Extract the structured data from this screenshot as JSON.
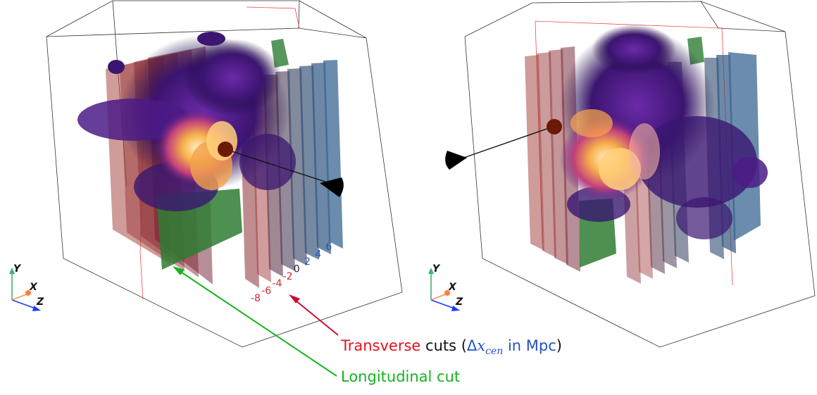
{
  "annotations": {
    "transverse": {
      "word": "Transverse",
      "rest": " cuts (",
      "delta": "Δ",
      "x": "x",
      "sub": "cen",
      "unit": " in Mpc",
      "close": ")"
    },
    "longitudinal": "Longitudinal cut"
  },
  "cut_ticks": [
    "-8",
    "-6",
    "-4",
    "-2",
    "0",
    "2",
    "4",
    "6"
  ],
  "axes_triad": {
    "y": "Y",
    "x": "X",
    "z": "Z"
  },
  "colors": {
    "transverse": "#e8101e",
    "longitudinal": "#18b21f",
    "tick_neg": "#d9262e",
    "tick_zero": "#222222",
    "tick_pos": "#2451c7",
    "axis_y": "#3cb371",
    "axis_x": "#ff7f3f",
    "axis_z": "#1f3bff"
  }
}
